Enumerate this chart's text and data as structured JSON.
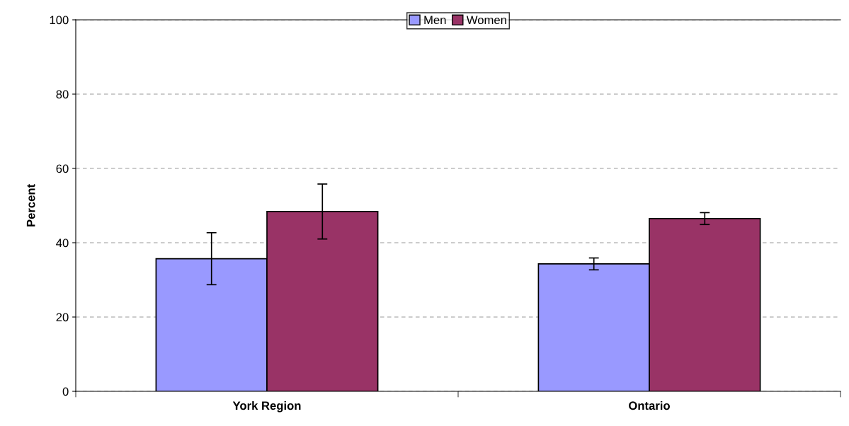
{
  "chart_data": {
    "type": "bar",
    "ylabel": "Percent",
    "categories": [
      "York Region",
      "Ontario"
    ],
    "series": [
      {
        "name": "Men",
        "color": "#9999ff",
        "values": [
          35.7,
          34.3
        ],
        "errors": [
          7.0,
          1.6
        ]
      },
      {
        "name": "Women",
        "color": "#993366",
        "values": [
          48.4,
          46.5
        ],
        "errors": [
          7.4,
          1.6
        ]
      }
    ],
    "ylim": [
      0,
      100
    ],
    "yticks": [
      0,
      20,
      40,
      60,
      80,
      100
    ],
    "grid": "y",
    "legend": "top"
  }
}
